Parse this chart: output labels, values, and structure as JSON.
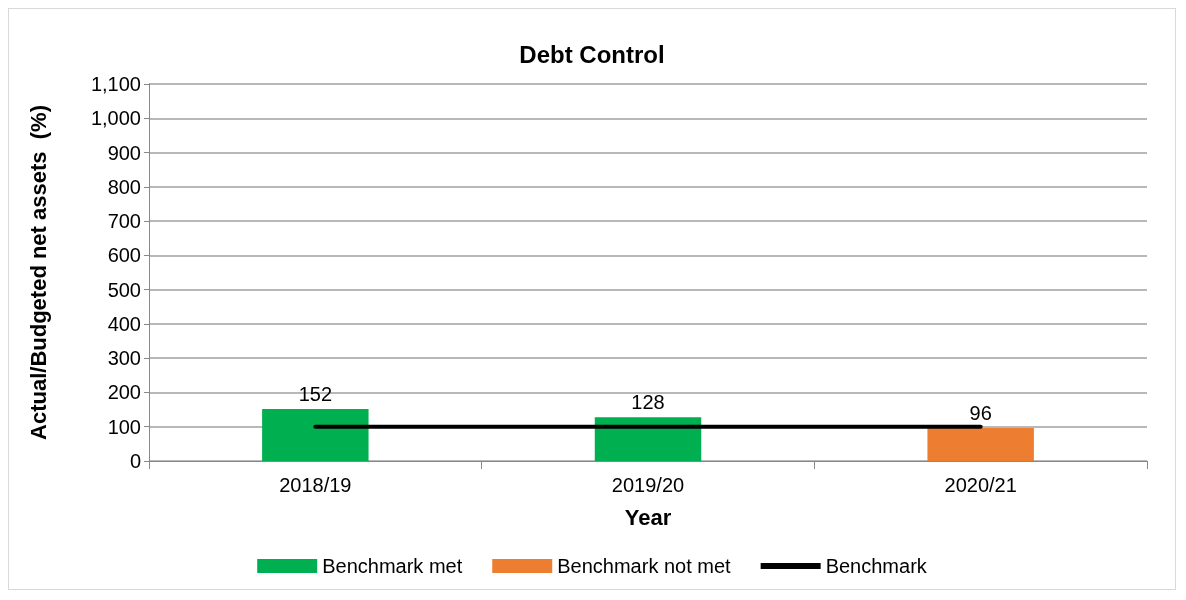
{
  "chart_data": {
    "type": "bar",
    "title": "Debt Control",
    "xlabel": "Year",
    "ylabel": "Actual/Budgeted net assets  (%)",
    "categories": [
      "2018/19",
      "2019/20",
      "2020/21"
    ],
    "series": [
      {
        "name": "Benchmark met",
        "color": "#00b050",
        "values": [
          152,
          128,
          null
        ],
        "value_labels": [
          "152",
          "128",
          null
        ]
      },
      {
        "name": "Benchmark not met",
        "color": "#ed7d31",
        "values": [
          null,
          null,
          96
        ],
        "value_labels": [
          null,
          null,
          "96"
        ]
      },
      {
        "name": "Benchmark",
        "type": "line",
        "color": "#000000",
        "values": [
          100,
          100,
          100
        ]
      }
    ],
    "stacked": true,
    "ylim": [
      0,
      1100
    ],
    "yticks": [
      0,
      100,
      200,
      300,
      400,
      500,
      600,
      700,
      800,
      900,
      {
        "value": 1000,
        "label": "1,000"
      },
      {
        "value": 1100,
        "label": "1,100"
      }
    ],
    "grid": "y",
    "legend": "bottom",
    "marker": "none",
    "line_style": "solid"
  }
}
